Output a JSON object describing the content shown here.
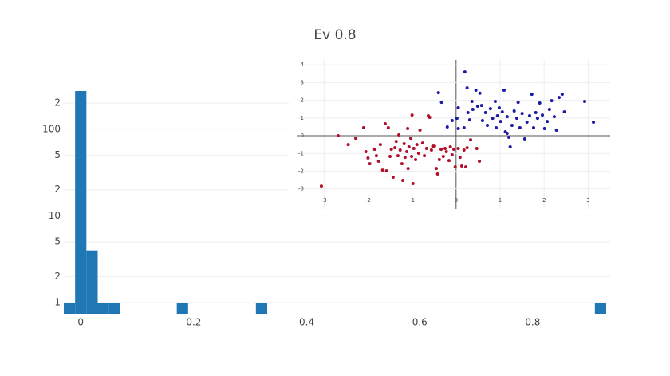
{
  "chart_data": [
    {
      "type": "histogram",
      "title": "Ev 0.8",
      "bins": [
        -0.03,
        -0.01,
        0.01,
        0.03,
        0.05,
        0.07,
        0.09,
        0.11,
        0.13,
        0.15,
        0.17,
        0.19,
        0.21,
        0.23,
        0.25,
        0.27,
        0.29,
        0.31,
        0.33,
        0.35,
        0.37,
        0.39,
        0.41,
        0.43,
        0.45,
        0.47,
        0.49,
        0.51,
        0.53,
        0.55,
        0.57,
        0.59,
        0.61,
        0.63,
        0.65,
        0.67,
        0.69,
        0.71,
        0.73,
        0.75,
        0.77,
        0.79,
        0.81,
        0.83,
        0.85,
        0.87,
        0.89,
        0.91,
        0.93
      ],
      "counts": [
        1,
        275,
        4,
        1,
        1,
        0,
        0,
        0,
        0,
        0,
        1,
        0,
        0,
        0,
        0,
        0,
        0,
        1,
        0,
        0,
        0,
        0,
        0,
        0,
        0,
        0,
        0,
        0,
        0,
        0,
        0,
        0,
        0,
        0,
        0,
        0,
        0,
        0,
        0,
        0,
        0,
        0,
        0,
        0,
        0,
        0,
        0,
        1
      ],
      "color": "#1f77b4",
      "xlim": [
        -0.03,
        0.93
      ],
      "xticks": [
        0,
        0.2,
        0.4,
        0.6,
        0.8
      ],
      "ylim": [
        0.745,
        281
      ],
      "log_y": true,
      "yticks": [
        1,
        2,
        5,
        10,
        {
          "value": 20,
          "label": "2"
        },
        {
          "value": 50,
          "label": "5"
        },
        100,
        {
          "value": 200,
          "label": "2"
        }
      ],
      "grid": true
    },
    {
      "type": "scatter",
      "xlim": [
        -3.62,
        3.5
      ],
      "ylim": [
        -4.14,
        4.28
      ],
      "xticks": [
        -3,
        -2,
        -1,
        0,
        1,
        2,
        3
      ],
      "yticks": [
        -3,
        -2,
        -1,
        0,
        1,
        2,
        3,
        4
      ],
      "grid": true,
      "series": [
        {
          "color": "#b2102a",
          "x": [
            -3.06,
            -2.68,
            -2.45,
            -2.28,
            -2.1,
            -2.05,
            -2.0,
            -1.96,
            -1.85,
            -1.81,
            -1.76,
            -1.72,
            -1.67,
            -1.61,
            -1.58,
            -1.54,
            -1.5,
            -1.47,
            -1.43,
            -1.39,
            -1.36,
            -1.32,
            -1.3,
            -1.27,
            -1.23,
            -1.21,
            -1.18,
            -1.16,
            -1.12,
            -1.1,
            -1.09,
            -1.07,
            -1.03,
            -1.01,
            -1.0,
            -0.98,
            -0.96,
            -0.92,
            -0.89,
            -0.85,
            -0.82,
            -0.76,
            -0.72,
            -0.67,
            -0.63,
            -0.6,
            -0.56,
            -0.53,
            -0.49,
            -0.45,
            -0.42,
            -0.38,
            -0.34,
            -0.29,
            -0.25,
            -0.22,
            -0.16,
            -0.13,
            -0.09,
            -0.05,
            -0.02,
            0.05,
            0.09,
            0.13,
            0.18,
            0.22,
            0.25,
            0.33,
            0.47,
            0.53
          ],
          "y": [
            -2.84,
            0,
            -0.5,
            -0.14,
            0.45,
            -0.9,
            -1.26,
            -1.58,
            -0.77,
            -1.13,
            -1.44,
            -0.5,
            -1.94,
            0.68,
            -1.98,
            0.45,
            -1.17,
            -0.77,
            -2.34,
            -0.68,
            -0.32,
            -1.13,
            0.05,
            -0.81,
            -1.58,
            -2.52,
            -0.45,
            -1.22,
            -0.9,
            0.41,
            -1.85,
            -0.63,
            -0.14,
            -1.17,
            1.17,
            -2.7,
            -0.72,
            -1.35,
            -0.5,
            -0.99,
            0.32,
            -0.41,
            -1.13,
            -0.72,
            1.13,
            1.04,
            -0.81,
            -0.59,
            -0.59,
            -1.85,
            -2.16,
            -1.35,
            -0.77,
            -1.17,
            -0.72,
            -0.9,
            -1.4,
            -0.63,
            -1.08,
            -0.77,
            -1.76,
            -0.72,
            -1.22,
            -1.71,
            -0.81,
            -1.76,
            -0.68,
            -0.23,
            -0.72,
            -1.44
          ]
        },
        {
          "color": "#1a1aa6",
          "x": [
            0.2,
            0.25,
            0.36,
            0.45,
            0.49,
            0.54,
            0.31,
            0.05,
            0.02,
            -0.09,
            -0.2,
            -0.33,
            -0.4,
            0.05,
            0.18,
            0.27,
            0.38,
            0.58,
            0.6,
            0.67,
            0.71,
            0.78,
            0.83,
            0.89,
            0.91,
            0.94,
            0.98,
            1.01,
            1.05,
            1.09,
            1.12,
            1.16,
            1.2,
            1.23,
            1.27,
            1.32,
            1.38,
            1.41,
            1.45,
            1.5,
            1.56,
            1.61,
            1.67,
            1.72,
            1.76,
            1.81,
            1.85,
            1.9,
            1.96,
            2.01,
            2.07,
            2.12,
            2.17,
            2.23,
            2.28,
            2.34,
            2.41,
            2.46,
            2.92,
            3.12,
            1.16
          ],
          "y": [
            3.6,
            2.7,
            1.94,
            2.57,
            1.67,
            2.4,
            0.9,
            1.58,
            0.99,
            0.86,
            0.5,
            1.89,
            2.43,
            0.41,
            0.45,
            1.31,
            1.49,
            1.71,
            0.86,
            1.31,
            0.59,
            1.53,
            0.99,
            1.94,
            0.45,
            1.13,
            1.58,
            0.81,
            1.35,
            2.57,
            0.23,
            1.08,
            -0.09,
            -0.63,
            0.59,
            1.4,
            0.99,
            1.89,
            0.45,
            1.26,
            -0.18,
            0.77,
            1.13,
            2.34,
            0.45,
            1.31,
            0.99,
            1.85,
            1.17,
            0.41,
            0.81,
            1.49,
            1.98,
            1.08,
            0.32,
            2.16,
            2.34,
            1.35,
            1.94,
            0.77,
            0.14
          ]
        }
      ]
    }
  ]
}
